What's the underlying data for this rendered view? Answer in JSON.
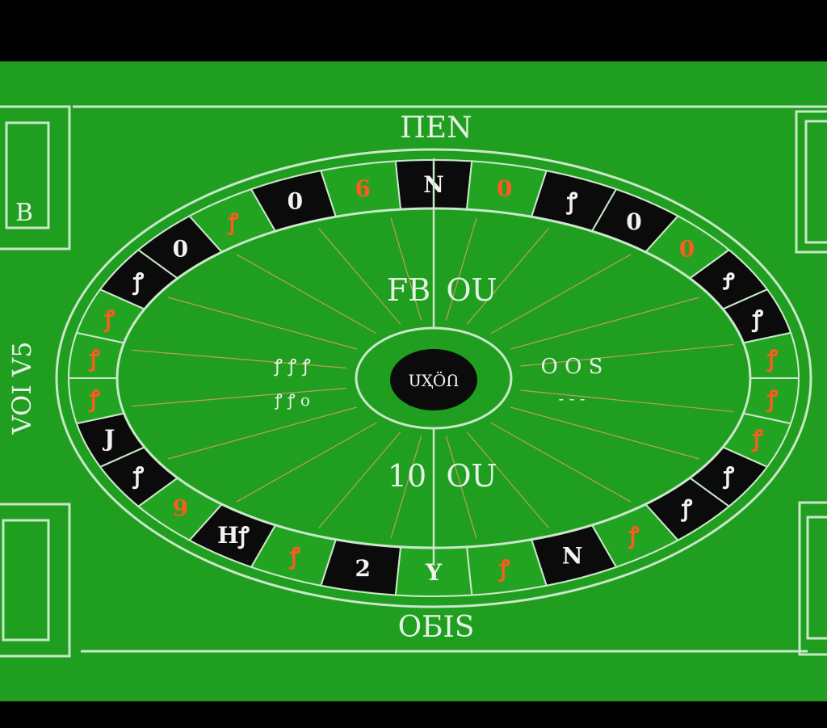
{
  "colors": {
    "felt": "#1f9e1f",
    "felt_dark": "#178a17",
    "line": "#c9e8c9",
    "black_pocket": "#0b0b0b",
    "green_pocket": "#22a322",
    "red_text": "#ff5a1f",
    "white_text": "#f2f2f2",
    "spoke": "#d9a06a"
  },
  "table": {
    "top_label": "ΠΕΝ",
    "bottom_label": "OБIS",
    "left_label": "VOI V5",
    "left_top_box_label": "B",
    "hub_label": "ՍҲÖՈ"
  },
  "inner_labels": {
    "upper_left": "FB",
    "upper_right": "OU",
    "lower_left": "10",
    "lower_right": "OU",
    "left_row1": "ꝭ ꝭ ꝭ",
    "left_row2": "ꝭ ꝭ o",
    "right_row1": "O O S",
    "right_row2": "- - -"
  },
  "wheel_pockets": [
    {
      "label": "N",
      "color": "black",
      "text": "white"
    },
    {
      "label": "0",
      "color": "green",
      "text": "red"
    },
    {
      "label": "ꝭ",
      "color": "black",
      "text": "white"
    },
    {
      "label": "0",
      "color": "black",
      "text": "white"
    },
    {
      "label": "0",
      "color": "green",
      "text": "red"
    },
    {
      "label": "Ꝭ",
      "color": "black",
      "text": "white"
    },
    {
      "label": "ꝭ",
      "color": "black",
      "text": "white"
    },
    {
      "label": "ꝭ",
      "color": "green",
      "text": "red"
    },
    {
      "label": "ꝭ",
      "color": "green",
      "text": "red"
    },
    {
      "label": "ꝭ",
      "color": "green",
      "text": "red"
    },
    {
      "label": "ꝭ",
      "color": "black",
      "text": "white"
    },
    {
      "label": "ꝭ",
      "color": "black",
      "text": "white"
    },
    {
      "label": "ꝭ",
      "color": "green",
      "text": "red"
    },
    {
      "label": "N",
      "color": "black",
      "text": "white"
    },
    {
      "label": "ꝭ",
      "color": "green",
      "text": "red"
    },
    {
      "label": "Y",
      "color": "green",
      "text": "white"
    },
    {
      "label": "2",
      "color": "black",
      "text": "white"
    },
    {
      "label": "ꝭ",
      "color": "green",
      "text": "red"
    },
    {
      "label": "Hꝭ",
      "color": "black",
      "text": "white"
    },
    {
      "label": "9",
      "color": "green",
      "text": "red"
    },
    {
      "label": "ꝭ",
      "color": "black",
      "text": "white"
    },
    {
      "label": "J",
      "color": "black",
      "text": "white"
    },
    {
      "label": "ꝭ",
      "color": "green",
      "text": "red"
    },
    {
      "label": "ꝭ",
      "color": "green",
      "text": "red"
    },
    {
      "label": "ꝭ",
      "color": "green",
      "text": "red"
    },
    {
      "label": "ꝭ",
      "color": "black",
      "text": "white"
    },
    {
      "label": "0",
      "color": "black",
      "text": "white"
    },
    {
      "label": "ꝭ",
      "color": "green",
      "text": "red"
    },
    {
      "label": "0",
      "color": "black",
      "text": "white"
    },
    {
      "label": "6",
      "color": "green",
      "text": "red"
    }
  ]
}
